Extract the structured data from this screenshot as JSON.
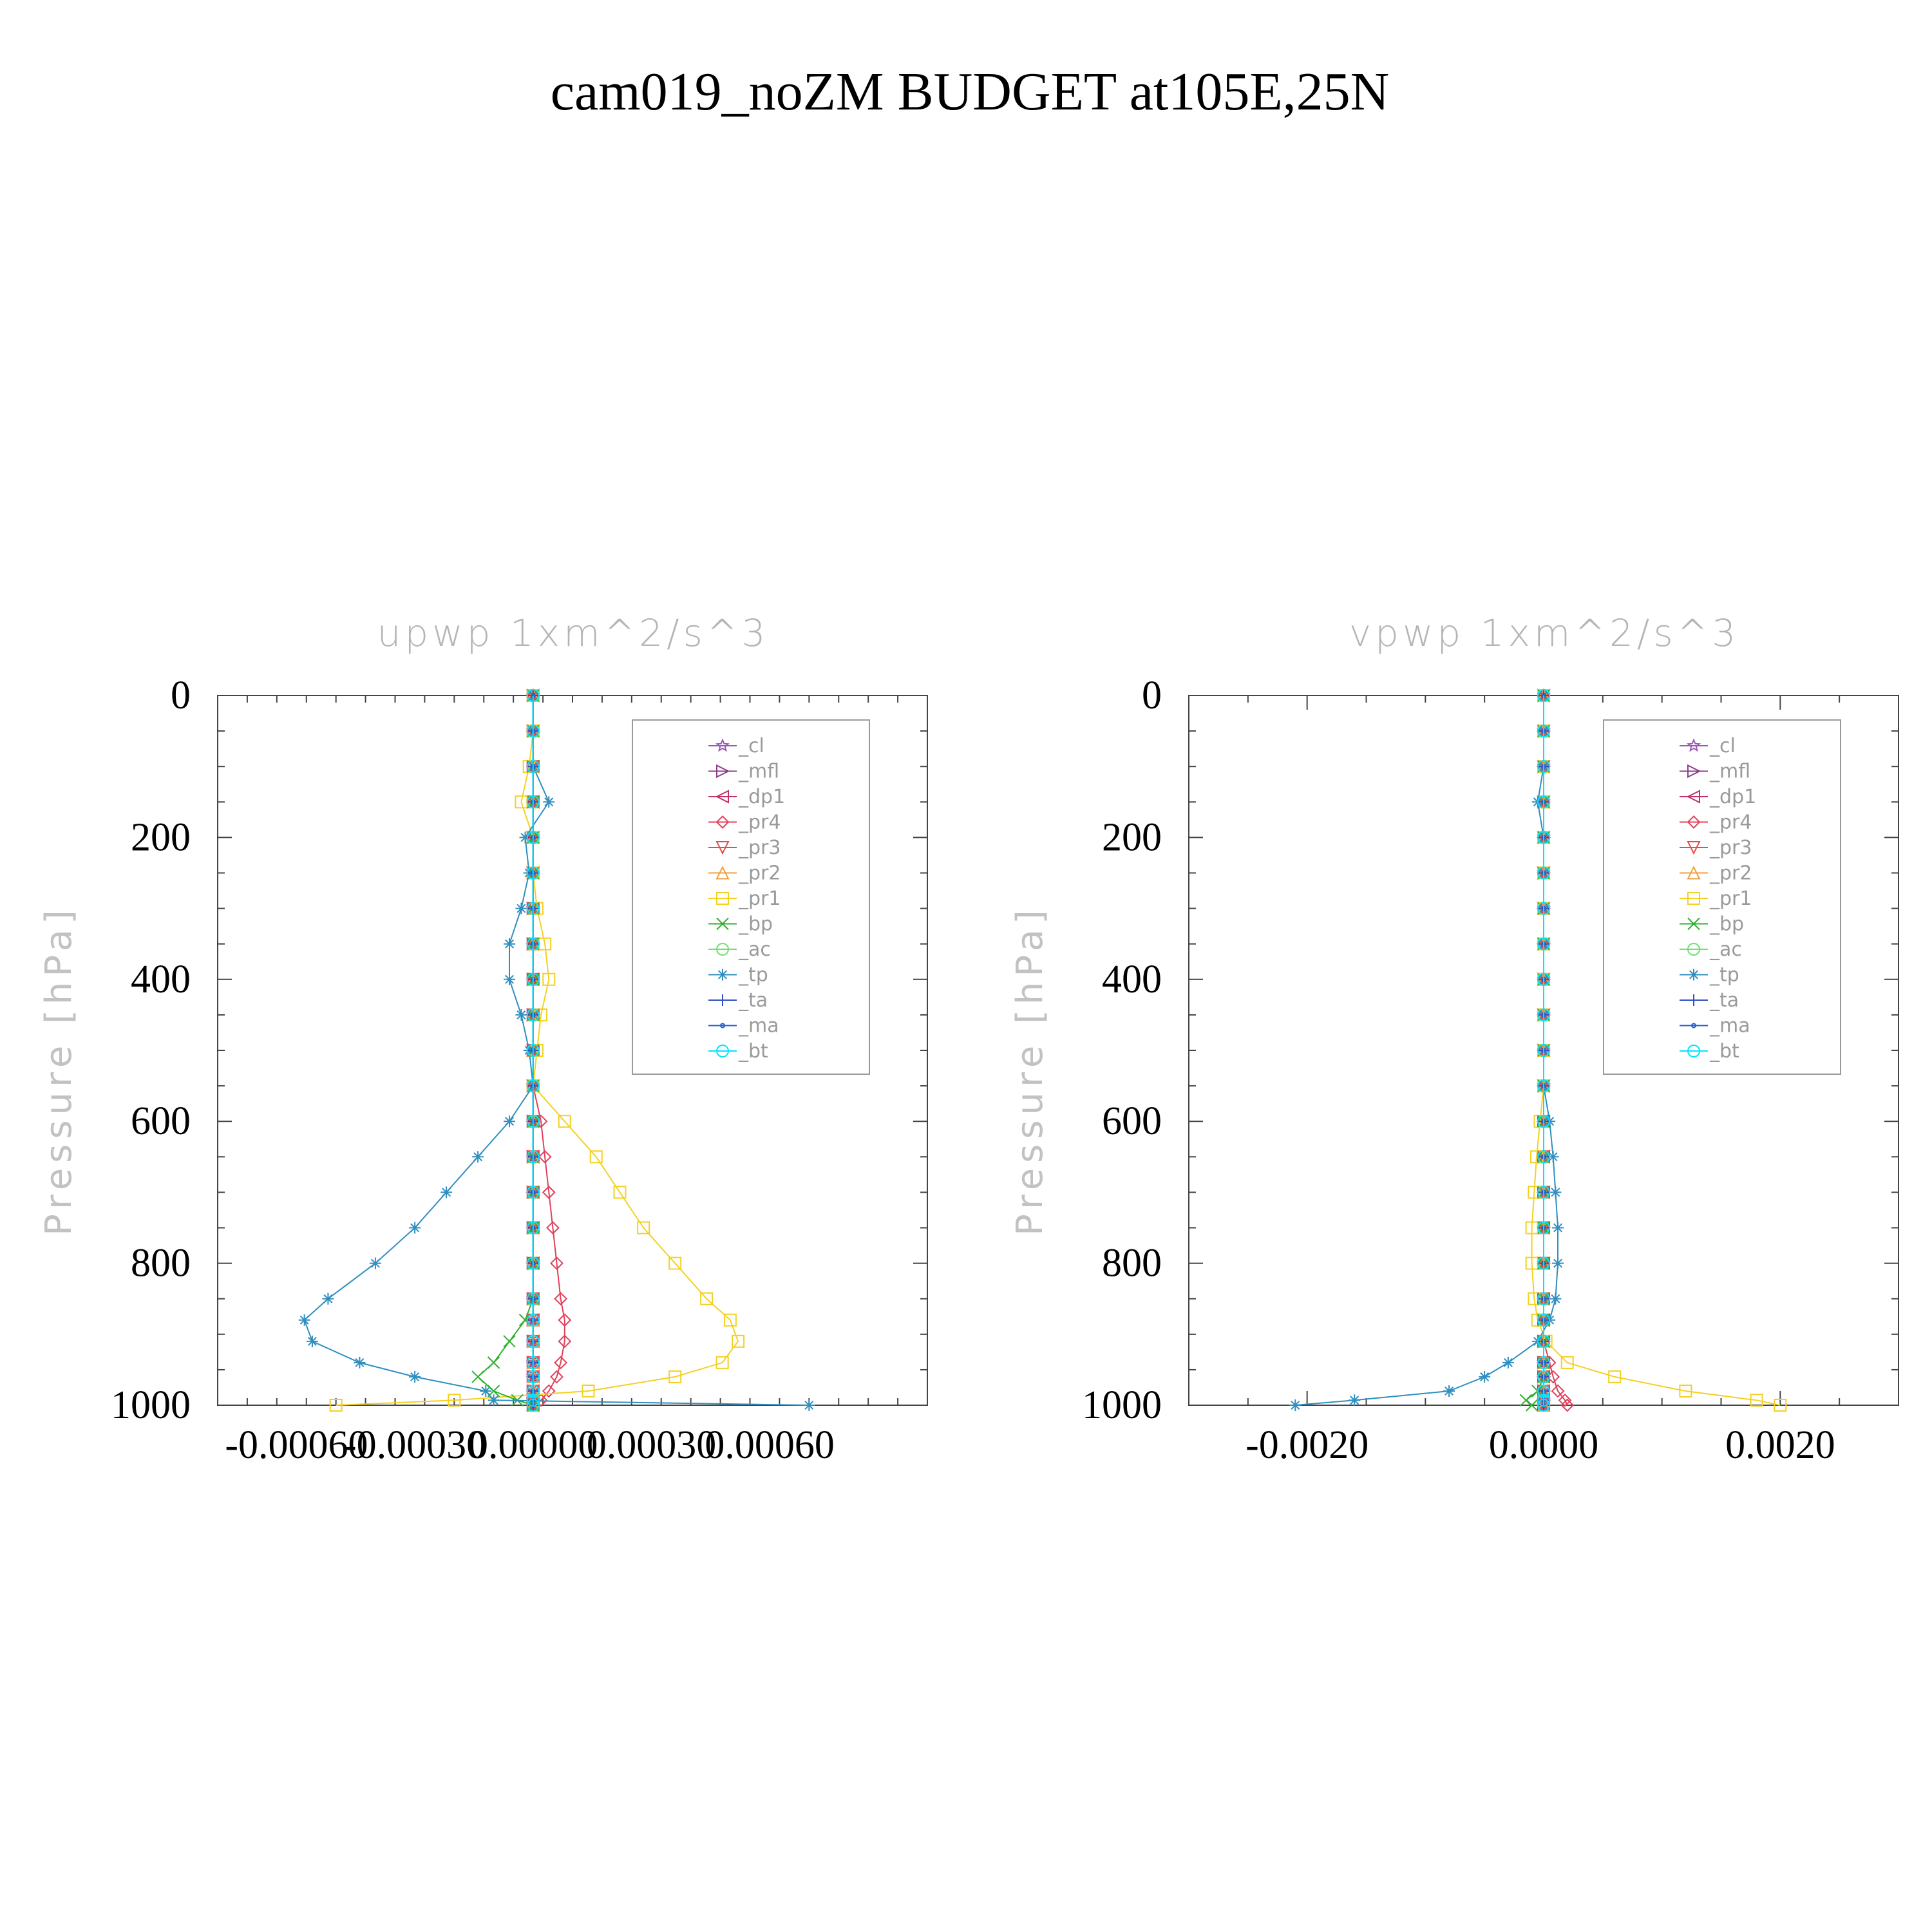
{
  "title": "cam019_noZM  BUDGET at105E,25N",
  "legend_entries": [
    {
      "name": "_cl",
      "color": "#9b59b6",
      "marker": "star"
    },
    {
      "name": "_mfl",
      "color": "#8e3a8e",
      "marker": "tri-right"
    },
    {
      "name": "_dp1",
      "color": "#c0306a",
      "marker": "tri-left"
    },
    {
      "name": "_pr4",
      "color": "#e0405a",
      "marker": "diamond"
    },
    {
      "name": "_pr3",
      "color": "#f04848",
      "marker": "tri-down"
    },
    {
      "name": "_pr2",
      "color": "#f0a040",
      "marker": "tri-up"
    },
    {
      "name": "_pr1",
      "color": "#f5d020",
      "marker": "square"
    },
    {
      "name": "_bp",
      "color": "#30b030",
      "marker": "x"
    },
    {
      "name": "_ac",
      "color": "#70e070",
      "marker": "circle"
    },
    {
      "name": "_tp",
      "color": "#2f8fc0",
      "marker": "asterisk"
    },
    {
      "name": "_ta",
      "color": "#3050c0",
      "marker": "plus"
    },
    {
      "name": "_ma",
      "color": "#2060d0",
      "marker": "dot"
    },
    {
      "name": "_bt",
      "color": "#00e5ff",
      "marker": "filled-circle"
    }
  ],
  "chart_data": [
    {
      "type": "line",
      "title": "upwp   1xm^2/s^3",
      "ylabel": "Pressure [hPa]",
      "xlabel": "",
      "xlim": [
        -0.0008,
        0.001
      ],
      "ylim": [
        1000,
        0
      ],
      "x_ticks": [
        -0.0006,
        -0.0003,
        0.0,
        0.0003,
        0.0006
      ],
      "x_tick_labels": [
        "-0.00060",
        "-0.00030",
        "0.00000",
        "0.00030",
        "0.00060"
      ],
      "y_ticks": [
        0,
        200,
        400,
        600,
        800,
        1000
      ],
      "y_tick_labels": [
        "0",
        "200",
        "400",
        "600",
        "800",
        "1000"
      ],
      "legend": "top-right",
      "pressure": [
        0,
        50,
        100,
        150,
        200,
        250,
        300,
        350,
        400,
        450,
        500,
        550,
        600,
        650,
        700,
        750,
        800,
        850,
        880,
        910,
        940,
        960,
        980,
        993,
        1000
      ],
      "series": [
        {
          "name": "_cl",
          "values": [
            0,
            0,
            0,
            0,
            0,
            0,
            0,
            0,
            0,
            0,
            0,
            0,
            0,
            0,
            0,
            0,
            0,
            0,
            0,
            0,
            0,
            0,
            0,
            0,
            0
          ]
        },
        {
          "name": "_mfl",
          "values": [
            0,
            0,
            0,
            0,
            0,
            0,
            0,
            0,
            0,
            0,
            0,
            0,
            0,
            0,
            0,
            0,
            0,
            0,
            0,
            0,
            0,
            0,
            0,
            0,
            0
          ]
        },
        {
          "name": "_dp1",
          "values": [
            0,
            0,
            0,
            0,
            0,
            0,
            0,
            0,
            0,
            0,
            0,
            0,
            0,
            0,
            0,
            0,
            0,
            0,
            0,
            0,
            0,
            0,
            0,
            0,
            0
          ]
        },
        {
          "name": "_pr4",
          "values": [
            0,
            0,
            0,
            0,
            0,
            0,
            0,
            0,
            0,
            0,
            0,
            0,
            2e-05,
            3e-05,
            4e-05,
            5e-05,
            6e-05,
            7e-05,
            8e-05,
            8e-05,
            7e-05,
            6e-05,
            4e-05,
            2e-05,
            0
          ]
        },
        {
          "name": "_pr3",
          "values": [
            0,
            0,
            0,
            0,
            0,
            0,
            0,
            0,
            0,
            0,
            0,
            0,
            0,
            0,
            0,
            0,
            0,
            0,
            0,
            0,
            0,
            0,
            0,
            0,
            0
          ]
        },
        {
          "name": "_pr2",
          "values": [
            0,
            0,
            0,
            0,
            0,
            0,
            0,
            0,
            0,
            0,
            0,
            0,
            0,
            0,
            0,
            0,
            0,
            0,
            0,
            0,
            0,
            0,
            0,
            0,
            0
          ]
        },
        {
          "name": "_pr1",
          "values": [
            0,
            0,
            -1e-05,
            -3e-05,
            0,
            0,
            1e-05,
            3e-05,
            4e-05,
            2e-05,
            1e-05,
            0,
            8e-05,
            0.00016,
            0.00022,
            0.00028,
            0.00036,
            0.00044,
            0.0005,
            0.00052,
            0.00048,
            0.00036,
            0.00014,
            -0.0002,
            -0.0005
          ]
        },
        {
          "name": "_bp",
          "values": [
            0,
            0,
            0,
            0,
            0,
            0,
            0,
            0,
            0,
            0,
            0,
            0,
            0,
            0,
            0,
            0,
            0,
            0,
            -2e-05,
            -6e-05,
            -0.0001,
            -0.00014,
            -0.0001,
            -4e-05,
            0
          ]
        },
        {
          "name": "_ac",
          "values": [
            0,
            0,
            0,
            0,
            0,
            0,
            0,
            0,
            0,
            0,
            0,
            0,
            0,
            0,
            0,
            0,
            0,
            0,
            0,
            0,
            0,
            0,
            0,
            0,
            0
          ]
        },
        {
          "name": "_tp",
          "values": [
            0,
            0,
            0,
            4e-05,
            -2e-05,
            -1e-05,
            -3e-05,
            -6e-05,
            -6e-05,
            -3e-05,
            -1e-05,
            0,
            -6e-05,
            -0.00014,
            -0.00022,
            -0.0003,
            -0.0004,
            -0.00052,
            -0.00058,
            -0.00056,
            -0.00044,
            -0.0003,
            -0.00012,
            -0.0001,
            0.0007
          ]
        },
        {
          "name": "_ta",
          "values": [
            0,
            0,
            0,
            0,
            0,
            0,
            0,
            0,
            0,
            0,
            0,
            0,
            0,
            0,
            0,
            0,
            0,
            0,
            0,
            0,
            0,
            0,
            0,
            0,
            0
          ]
        },
        {
          "name": "_ma",
          "values": [
            0,
            0,
            0,
            0,
            0,
            0,
            0,
            0,
            0,
            0,
            0,
            0,
            0,
            0,
            0,
            0,
            0,
            0,
            0,
            0,
            0,
            0,
            0,
            0,
            0
          ]
        },
        {
          "name": "_bt",
          "values": [
            0,
            0,
            0,
            0,
            0,
            0,
            0,
            0,
            0,
            0,
            0,
            0,
            0,
            0,
            0,
            0,
            0,
            0,
            0,
            0,
            0,
            0,
            0,
            0,
            0
          ]
        }
      ]
    },
    {
      "type": "line",
      "title": "vpwp   1xm^2/s^3",
      "ylabel": "Pressure [hPa]",
      "xlabel": "",
      "xlim": [
        -0.003,
        0.003
      ],
      "ylim": [
        1000,
        0
      ],
      "x_ticks": [
        -0.002,
        0.0,
        0.002
      ],
      "x_tick_labels": [
        "-0.0020",
        "0.0000",
        "0.0020"
      ],
      "y_ticks": [
        0,
        200,
        400,
        600,
        800,
        1000
      ],
      "y_tick_labels": [
        "0",
        "200",
        "400",
        "600",
        "800",
        "1000"
      ],
      "legend": "top-right",
      "pressure": [
        0,
        50,
        100,
        150,
        200,
        250,
        300,
        350,
        400,
        450,
        500,
        550,
        600,
        650,
        700,
        750,
        800,
        850,
        880,
        910,
        940,
        960,
        980,
        993,
        1000
      ],
      "series": [
        {
          "name": "_cl",
          "values": [
            0,
            0,
            0,
            0,
            0,
            0,
            0,
            0,
            0,
            0,
            0,
            0,
            0,
            0,
            0,
            0,
            0,
            0,
            0,
            0,
            0,
            0,
            0,
            0,
            0
          ]
        },
        {
          "name": "_mfl",
          "values": [
            0,
            0,
            0,
            0,
            0,
            0,
            0,
            0,
            0,
            0,
            0,
            0,
            0,
            0,
            0,
            0,
            0,
            0,
            0,
            0,
            0,
            0,
            0,
            0,
            0
          ]
        },
        {
          "name": "_dp1",
          "values": [
            0,
            0,
            0,
            0,
            0,
            0,
            0,
            0,
            0,
            0,
            0,
            0,
            0,
            0,
            0,
            0,
            0,
            0,
            0,
            0,
            0,
            0,
            0,
            0,
            0
          ]
        },
        {
          "name": "_pr4",
          "values": [
            0,
            0,
            0,
            0,
            0,
            0,
            0,
            0,
            0,
            0,
            0,
            0,
            0,
            0,
            0,
            0,
            0,
            0,
            0,
            0,
            5e-05,
            8e-05,
            0.00012,
            0.00018,
            0.0002
          ]
        },
        {
          "name": "_pr3",
          "values": [
            0,
            0,
            0,
            0,
            0,
            0,
            0,
            0,
            0,
            0,
            0,
            0,
            0,
            0,
            0,
            0,
            0,
            0,
            0,
            0,
            0,
            0,
            0,
            0,
            0
          ]
        },
        {
          "name": "_pr2",
          "values": [
            0,
            0,
            0,
            0,
            0,
            0,
            0,
            0,
            0,
            0,
            0,
            0,
            0,
            0,
            0,
            0,
            0,
            0,
            0,
            0,
            0,
            0,
            0,
            0,
            0
          ]
        },
        {
          "name": "_pr1",
          "values": [
            0,
            0,
            0,
            0,
            0,
            0,
            0,
            0,
            0,
            0,
            0,
            0,
            -3e-05,
            -6e-05,
            -8e-05,
            -0.0001,
            -0.0001,
            -8e-05,
            -5e-05,
            2e-05,
            0.0002,
            0.0006,
            0.0012,
            0.0018,
            0.002
          ]
        },
        {
          "name": "_bp",
          "values": [
            0,
            0,
            0,
            0,
            0,
            0,
            0,
            0,
            0,
            0,
            0,
            0,
            0,
            0,
            0,
            0,
            0,
            0,
            0,
            0,
            0,
            0,
            -5e-05,
            -0.00015,
            -0.0001
          ]
        },
        {
          "name": "_ac",
          "values": [
            0,
            0,
            0,
            0,
            0,
            0,
            0,
            0,
            0,
            0,
            0,
            0,
            0,
            0,
            0,
            0,
            0,
            0,
            0,
            0,
            0,
            0,
            0,
            0,
            0
          ]
        },
        {
          "name": "_tp",
          "values": [
            0,
            0,
            0,
            -5e-05,
            0,
            0,
            0,
            0,
            0,
            0,
            0,
            0,
            5e-05,
            8e-05,
            0.0001,
            0.00012,
            0.00012,
            0.0001,
            5e-05,
            -5e-05,
            -0.0003,
            -0.0005,
            -0.0008,
            -0.0016,
            -0.0021
          ]
        },
        {
          "name": "_ta",
          "values": [
            0,
            0,
            0,
            0,
            0,
            0,
            0,
            0,
            0,
            0,
            0,
            0,
            0,
            0,
            0,
            0,
            0,
            0,
            0,
            0,
            0,
            0,
            0,
            0,
            0
          ]
        },
        {
          "name": "_ma",
          "values": [
            0,
            0,
            0,
            0,
            0,
            0,
            0,
            0,
            0,
            0,
            0,
            0,
            0,
            0,
            0,
            0,
            0,
            0,
            0,
            0,
            0,
            0,
            0,
            0,
            0
          ]
        },
        {
          "name": "_bt",
          "values": [
            0,
            0,
            0,
            0,
            0,
            0,
            0,
            0,
            0,
            0,
            0,
            0,
            0,
            0,
            0,
            0,
            0,
            0,
            0,
            0,
            0,
            0,
            0,
            0,
            0
          ]
        }
      ]
    }
  ]
}
